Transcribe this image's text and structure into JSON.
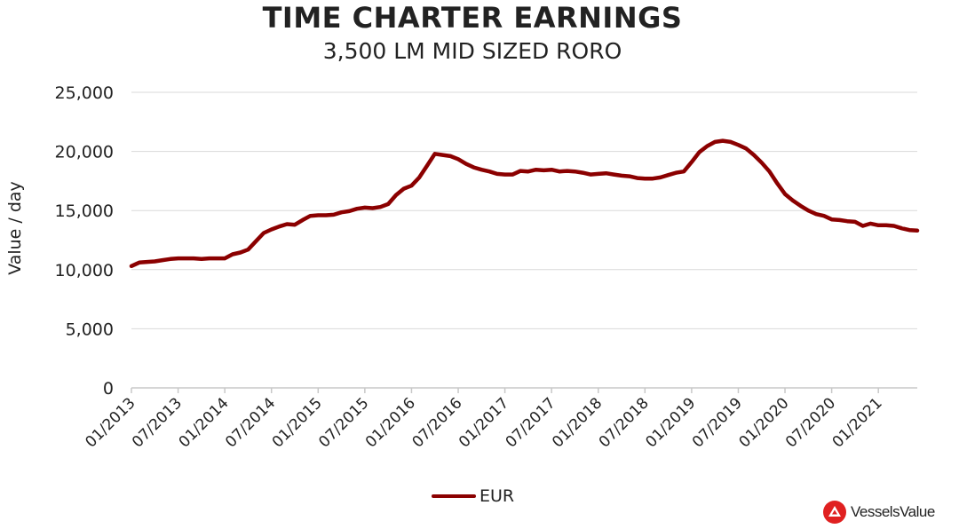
{
  "chart_data": {
    "type": "line",
    "title": "TIME CHARTER EARNINGS",
    "subtitle": "3,500 LM MID SIZED RORO",
    "xlabel": "",
    "ylabel": "Value / day",
    "ylim": [
      0,
      25000
    ],
    "y_ticks": [
      0,
      5000,
      10000,
      15000,
      20000,
      25000
    ],
    "y_tick_labels": [
      "0",
      "5,000",
      "10,000",
      "15,000",
      "20,000",
      "25,000"
    ],
    "x_range": [
      "2013-01-01",
      "2021-06-01"
    ],
    "x_tick_labels": [
      "01/2013",
      "07/2013",
      "01/2014",
      "07/2014",
      "01/2015",
      "07/2015",
      "01/2016",
      "07/2016",
      "01/2017",
      "07/2017",
      "01/2018",
      "07/2018",
      "01/2019",
      "07/2019",
      "01/2020",
      "07/2020",
      "01/2021"
    ],
    "grid": "horizontal",
    "legend_position": "bottom",
    "series": [
      {
        "name": "EUR",
        "color": "#8b0000",
        "x": [
          "2013-01-01",
          "2013-02-01",
          "2013-04-01",
          "2013-05-01",
          "2013-06-01",
          "2013-07-01",
          "2013-08-01",
          "2013-09-01",
          "2013-10-01",
          "2013-11-01",
          "2013-12-01",
          "2014-01-01",
          "2014-02-01",
          "2014-03-01",
          "2014-04-01",
          "2014-05-01",
          "2014-06-01",
          "2014-07-01",
          "2014-08-01",
          "2014-09-01",
          "2014-10-01",
          "2014-11-01",
          "2014-12-01",
          "2015-01-01",
          "2015-02-01",
          "2015-03-01",
          "2015-04-01",
          "2015-05-01",
          "2015-06-01",
          "2015-07-01",
          "2015-08-01",
          "2015-09-01",
          "2015-10-01",
          "2015-11-01",
          "2015-12-01",
          "2016-01-01",
          "2016-02-01",
          "2016-03-01",
          "2016-04-01",
          "2016-05-01",
          "2016-06-01",
          "2016-07-01",
          "2016-08-01",
          "2016-09-01",
          "2016-10-01",
          "2016-11-01",
          "2016-12-01",
          "2017-01-01",
          "2017-02-01",
          "2017-03-01",
          "2017-04-01",
          "2017-05-01",
          "2017-06-01",
          "2017-07-01",
          "2017-08-01",
          "2017-09-01",
          "2017-10-01",
          "2017-11-01",
          "2017-12-01",
          "2018-01-01",
          "2018-02-01",
          "2018-03-01",
          "2018-04-01",
          "2018-05-01",
          "2018-06-01",
          "2018-07-01",
          "2018-08-01",
          "2018-09-01",
          "2018-10-01",
          "2018-11-01",
          "2018-12-01",
          "2019-01-01",
          "2019-02-01",
          "2019-03-01",
          "2019-04-01",
          "2019-05-01",
          "2019-06-01",
          "2019-07-01",
          "2019-08-01",
          "2019-09-01",
          "2019-10-01",
          "2019-11-01",
          "2019-12-01",
          "2020-01-01",
          "2020-02-01",
          "2020-03-01",
          "2020-04-01",
          "2020-05-01",
          "2020-06-01",
          "2020-07-01",
          "2020-08-01",
          "2020-09-01",
          "2020-10-01",
          "2020-11-01",
          "2020-12-01",
          "2021-01-01",
          "2021-02-01",
          "2021-03-01",
          "2021-04-01",
          "2021-05-01",
          "2021-06-01"
        ],
        "values": [
          10300,
          10600,
          10700,
          10800,
          10900,
          10950,
          10950,
          10950,
          10900,
          10950,
          10950,
          10950,
          11300,
          11450,
          11700,
          12400,
          13100,
          13400,
          13650,
          13850,
          13800,
          14200,
          14550,
          14600,
          14600,
          14650,
          14850,
          14950,
          15150,
          15250,
          15200,
          15300,
          15550,
          16300,
          16850,
          17100,
          17800,
          18800,
          19800,
          19700,
          19600,
          19350,
          18950,
          18650,
          18450,
          18300,
          18100,
          18050,
          18050,
          18350,
          18300,
          18450,
          18400,
          18450,
          18300,
          18350,
          18300,
          18200,
          18050,
          18100,
          18150,
          18050,
          17950,
          17900,
          17750,
          17700,
          17700,
          17800,
          18000,
          18200,
          18300,
          19100,
          19950,
          20450,
          20800,
          20900,
          20800,
          20550,
          20250,
          19700,
          19050,
          18300,
          17300,
          16400,
          15850,
          15400,
          15000,
          14700,
          14550,
          14250,
          14200,
          14100,
          14050,
          13700,
          13900,
          13750,
          13750,
          13700,
          13500,
          13350,
          13300
        ]
      }
    ]
  },
  "brand": {
    "name": "VesselsValue",
    "color": "#e02020"
  }
}
